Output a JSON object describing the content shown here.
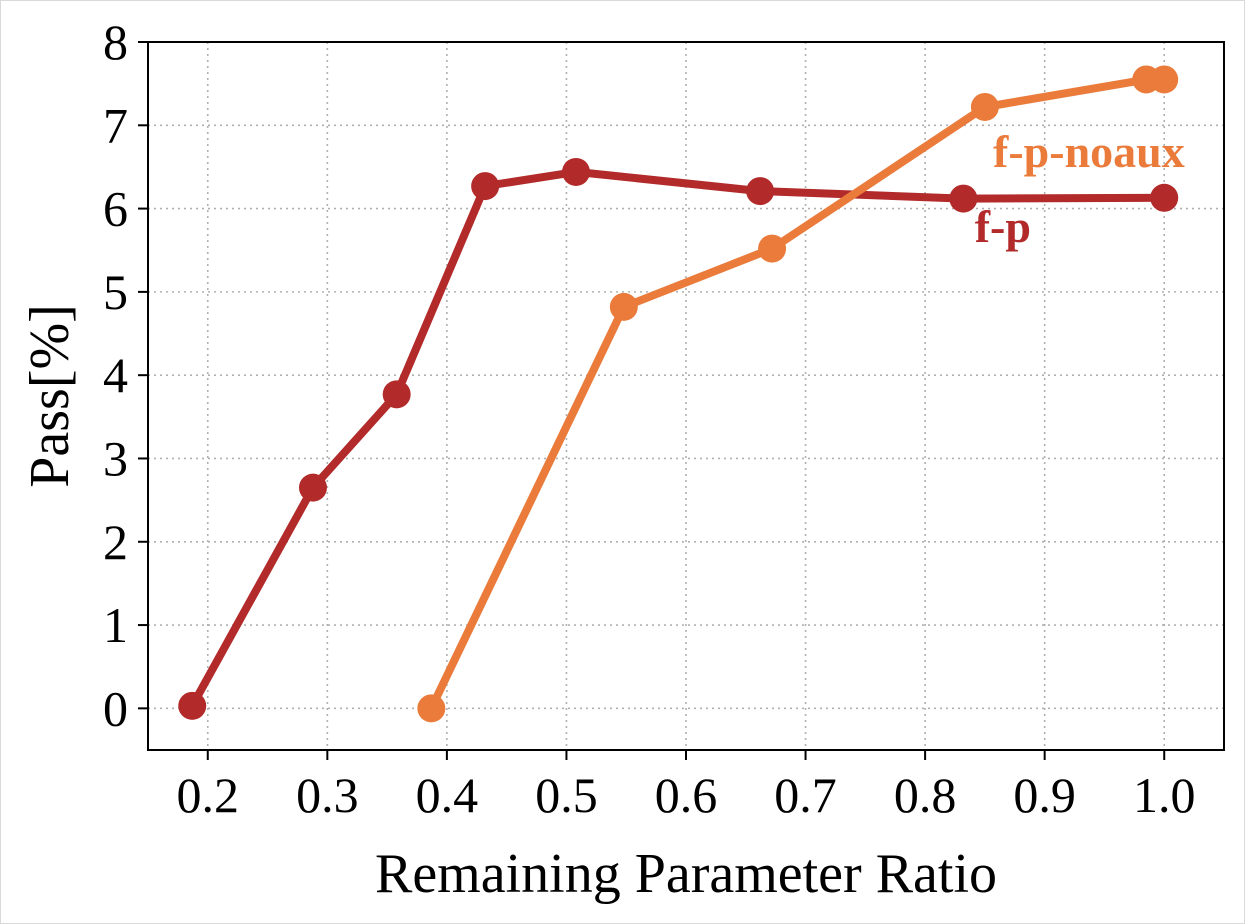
{
  "chart_data": {
    "type": "line",
    "title": "",
    "xlabel": "Remaining Parameter Ratio",
    "ylabel": "Pass[%]",
    "xlim": [
      0.15,
      1.05
    ],
    "ylim": [
      -0.5,
      8
    ],
    "x_ticks": [
      0.2,
      0.3,
      0.4,
      0.5,
      0.6,
      0.7,
      0.8,
      0.9,
      1.0
    ],
    "x_tick_labels": [
      "0.2",
      "0.3",
      "0.4",
      "0.5",
      "0.6",
      "0.7",
      "0.8",
      "0.9",
      "1.0"
    ],
    "y_ticks": [
      0,
      1,
      2,
      3,
      4,
      5,
      6,
      7,
      8
    ],
    "y_tick_labels": [
      "0",
      "1",
      "2",
      "3",
      "4",
      "5",
      "6",
      "7",
      "8"
    ],
    "grid": true,
    "legend": "none",
    "series": [
      {
        "name": "f-p",
        "color": "#b22a2a",
        "label_at": {
          "x": 0.865,
          "y": 5.6
        },
        "points": [
          {
            "x": 0.187,
            "y": 0.03
          },
          {
            "x": 0.288,
            "y": 2.65
          },
          {
            "x": 0.358,
            "y": 3.77
          },
          {
            "x": 0.432,
            "y": 6.27
          },
          {
            "x": 0.508,
            "y": 6.44
          },
          {
            "x": 0.662,
            "y": 6.21
          },
          {
            "x": 0.832,
            "y": 6.12
          },
          {
            "x": 1.0,
            "y": 6.13
          }
        ]
      },
      {
        "name": "f-p-noaux",
        "color": "#ea7b3b",
        "label_at": {
          "x": 0.937,
          "y": 6.5
        },
        "points": [
          {
            "x": 0.387,
            "y": 0.0
          },
          {
            "x": 0.548,
            "y": 4.82
          },
          {
            "x": 0.672,
            "y": 5.52
          },
          {
            "x": 0.85,
            "y": 7.22
          },
          {
            "x": 0.985,
            "y": 7.55
          },
          {
            "x": 1.0,
            "y": 7.55
          }
        ]
      }
    ]
  }
}
